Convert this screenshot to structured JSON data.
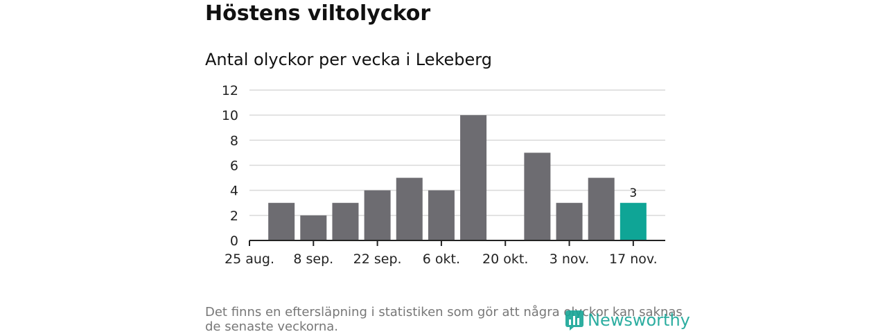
{
  "title": "Höstens viltolyckor",
  "subtitle": "Antal olyckor per vecka i Lekeberg",
  "footnote": "Det finns en eftersläpning i statistiken som gör att några olyckor kan saknas de senaste veckorna.",
  "brand": {
    "name": "Newsworthy",
    "color": "#16a596"
  },
  "colors": {
    "bar": "#6d6c71",
    "highlight": "#0fa596",
    "grid": "#d9d9d9",
    "axis": "#222222"
  },
  "chart_data": {
    "type": "bar",
    "title": "Antal olyckor per vecka i Lekeberg",
    "xlabel": "",
    "ylabel": "",
    "ylim": [
      0,
      12
    ],
    "yticks": [
      0,
      2,
      4,
      6,
      8,
      10,
      12
    ],
    "xtick_labels": [
      "25 aug.",
      "8 sep.",
      "22 sep.",
      "6 okt.",
      "20 okt.",
      "3 nov.",
      "17 nov."
    ],
    "values": [
      3,
      2,
      3,
      4,
      5,
      4,
      10,
      0,
      7,
      3,
      5,
      3
    ],
    "highlight_index": 11,
    "data_labels": [
      {
        "index": 11,
        "text": "3"
      }
    ],
    "grid": true,
    "legend": "none"
  }
}
